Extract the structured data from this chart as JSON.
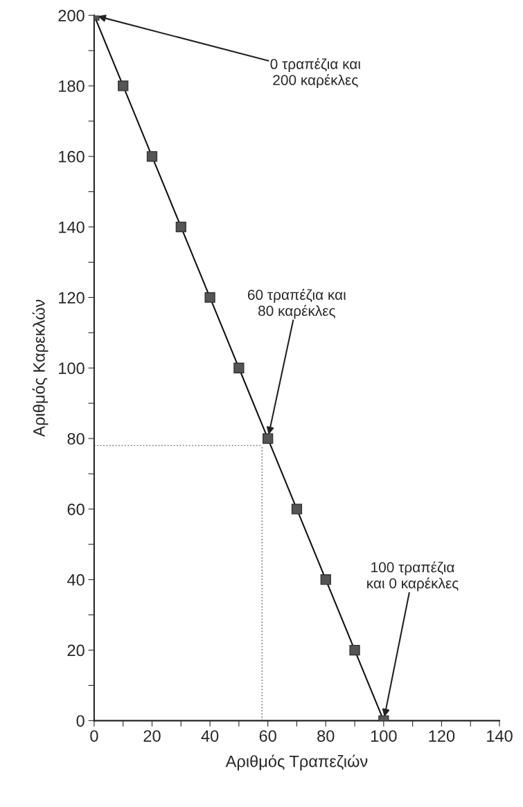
{
  "chart_data": {
    "type": "line",
    "xlabel": "Αριθμός Τραπεζιών",
    "ylabel": "Αριθμός Καρεκλών",
    "x": [
      0,
      10,
      20,
      30,
      40,
      50,
      60,
      70,
      80,
      90,
      100
    ],
    "series": [
      {
        "color": "#555555",
        "values": [
          200,
          180,
          160,
          140,
          120,
          100,
          80,
          60,
          40,
          20,
          0
        ]
      }
    ],
    "marker": "square",
    "line_style": "solid",
    "grid": false,
    "legend": false,
    "xlim": [
      0,
      140
    ],
    "ylim": [
      0,
      200
    ],
    "xticks": [
      0,
      {
        "value": 10,
        "label": null
      },
      20,
      {
        "value": 30,
        "label": null
      },
      40,
      {
        "value": 50,
        "label": null
      },
      60,
      {
        "value": 70,
        "label": null
      },
      80,
      {
        "value": 90,
        "label": null
      },
      100,
      {
        "value": 110,
        "label": null
      },
      120,
      {
        "value": 130,
        "label": null
      },
      140
    ],
    "yticks": [
      0,
      {
        "value": 10,
        "label": null
      },
      20,
      {
        "value": 30,
        "label": null
      },
      40,
      {
        "value": 50,
        "label": null
      },
      60,
      {
        "value": 70,
        "label": null
      },
      80,
      {
        "value": 90,
        "label": null
      },
      100,
      {
        "value": 110,
        "label": null
      },
      120,
      {
        "value": 130,
        "label": null
      },
      140,
      {
        "value": 150,
        "label": null
      },
      160,
      {
        "value": 170,
        "label": null
      },
      180,
      {
        "value": 190,
        "label": null
      },
      200
    ],
    "ref_lines": [
      {
        "axis": "x",
        "value": 58,
        "line_style": "dotted",
        "color": "#777777"
      },
      {
        "axis": "y",
        "value": 78,
        "line_style": "dotted",
        "color": "#777777"
      }
    ],
    "annotations": [
      {
        "text": "0 τραπέζια και\n200 καρέκλες",
        "x": 0,
        "y": 200
      },
      {
        "text": "60 τραπέζια και\n80 καρέκλες",
        "x": 60,
        "y": 80
      },
      {
        "text": "100 τραπέζια\nκαι 0 καρέκλες",
        "x": 100,
        "y": 0
      }
    ]
  }
}
